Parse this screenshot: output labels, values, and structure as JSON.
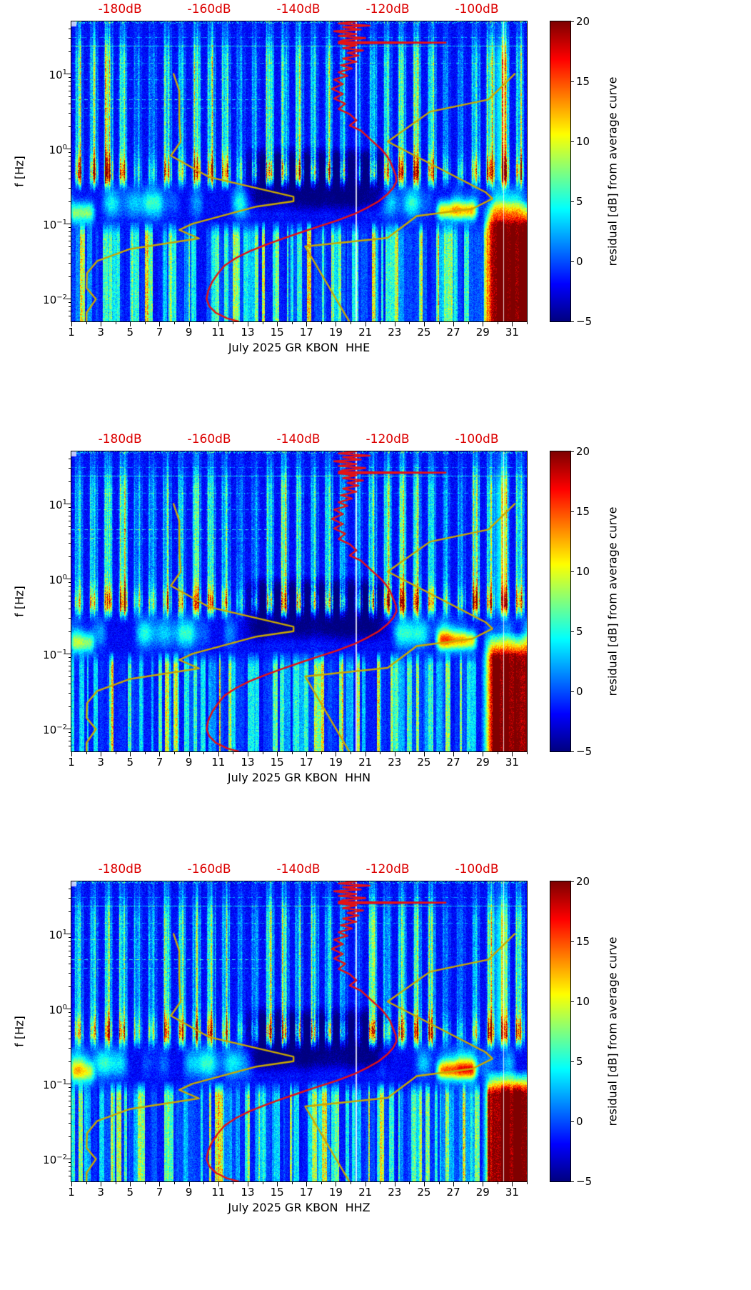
{
  "chart_data": {
    "type": "heatmap",
    "description": "Three stacked day-frequency residual spectrograms for July 2025, station GR KBON, channels HHE, HHN, HHZ, jet colormap, with red station average PSD curve and yellow Peterson noise-model curves referenced to the red dB axis on top",
    "panels": [
      {
        "channel": "HHE",
        "xlabel": "July 2025 GR KBON  HHE",
        "seed": 11,
        "storm_top_logf": -0.68
      },
      {
        "channel": "HHN",
        "xlabel": "July 2025 GR KBON  HHN",
        "seed": 29,
        "storm_top_logf": -0.7
      },
      {
        "channel": "HHZ",
        "xlabel": "July 2025 GR KBON  HHZ",
        "seed": 47,
        "storm_top_logf": -0.8
      }
    ],
    "common": {
      "ylabel": "f [Hz]",
      "x": {
        "lim": [
          1,
          32
        ],
        "major_ticks": [
          1,
          3,
          5,
          7,
          9,
          11,
          13,
          15,
          17,
          19,
          21,
          23,
          25,
          27,
          29,
          31
        ],
        "minor_ticks": [
          2,
          4,
          6,
          8,
          10,
          12,
          14,
          16,
          18,
          20,
          22,
          24,
          26,
          28,
          30,
          32
        ]
      },
      "y": {
        "lim_hz": [
          0.005,
          50
        ],
        "major_tick_exponents": [
          1,
          0,
          -1,
          -2
        ]
      },
      "top_axis": {
        "lim_db": [
          -190.9,
          -88.8
        ],
        "ticks_db": [
          -180,
          -160,
          -140,
          -120,
          -100
        ],
        "suffix": "dB",
        "color": "#dc0000"
      },
      "colorbar": {
        "label": "residual [dB] from average curve",
        "lim": [
          -5,
          20
        ],
        "ticks": [
          20,
          15,
          10,
          5,
          0,
          -5
        ],
        "colormap": "jet"
      },
      "features": {
        "quiet_period_days": [
          13,
          22.5
        ],
        "hot_microseism_days": [
          26,
          28.6
        ],
        "early_microseism_days": [
          1,
          2.6
        ],
        "storm_days": [
          28.8,
          32
        ],
        "data_gap_days": [
          20.35,
          30.42
        ],
        "interference_lines_hz": [
          31,
          23.5,
          14,
          8.5,
          4.6,
          3.5
        ]
      },
      "curves": {
        "red_color": "#e51313",
        "yellow_color": "#c9a800",
        "station_average_db": [
          [
            50,
            -127
          ],
          [
            47,
            -131
          ],
          [
            44,
            -124
          ],
          [
            42,
            -130
          ],
          [
            39,
            -126
          ],
          [
            37,
            -132
          ],
          [
            34,
            -127
          ],
          [
            32,
            -131
          ],
          [
            30,
            -125
          ],
          [
            28,
            -130
          ],
          [
            26.6,
            -131
          ],
          [
            26,
            -107
          ],
          [
            25.4,
            -131
          ],
          [
            24,
            -127
          ],
          [
            22,
            -130
          ],
          [
            20.5,
            -125.5
          ],
          [
            19,
            -129
          ],
          [
            17.5,
            -126.5
          ],
          [
            16,
            -130
          ],
          [
            14.5,
            -127
          ],
          [
            13,
            -130.5
          ],
          [
            11.8,
            -128
          ],
          [
            10.5,
            -131
          ],
          [
            9.4,
            -129
          ],
          [
            8.4,
            -132
          ],
          [
            7.3,
            -130
          ],
          [
            6.3,
            -132.5
          ],
          [
            5.4,
            -130
          ],
          [
            4.7,
            -132
          ],
          [
            4.0,
            -129.5
          ],
          [
            3.4,
            -131
          ],
          [
            2.9,
            -128.5
          ],
          [
            2.4,
            -127
          ],
          [
            2.05,
            -128.5
          ],
          [
            1.75,
            -126
          ],
          [
            1.45,
            -124.5
          ],
          [
            1.2,
            -123
          ],
          [
            1.0,
            -121.5
          ],
          [
            0.85,
            -120.5
          ],
          [
            0.7,
            -119.5
          ],
          [
            0.55,
            -118.8
          ],
          [
            0.45,
            -118.2
          ],
          [
            0.37,
            -118
          ],
          [
            0.3,
            -118.8
          ],
          [
            0.25,
            -120
          ],
          [
            0.2,
            -122
          ],
          [
            0.165,
            -124.5
          ],
          [
            0.135,
            -127.5
          ],
          [
            0.11,
            -131.5
          ],
          [
            0.09,
            -136
          ],
          [
            0.075,
            -140
          ],
          [
            0.062,
            -144
          ],
          [
            0.052,
            -147.5
          ],
          [
            0.043,
            -151
          ],
          [
            0.035,
            -154
          ],
          [
            0.028,
            -156.5
          ],
          [
            0.022,
            -158
          ],
          [
            0.017,
            -159.3
          ],
          [
            0.013,
            -160.2
          ],
          [
            0.01,
            -160.6
          ],
          [
            0.008,
            -160
          ],
          [
            0.0065,
            -158.5
          ],
          [
            0.0055,
            -156
          ],
          [
            0.005,
            -153.5
          ]
        ],
        "peterson_nlnm_db": [
          [
            10,
            -168
          ],
          [
            5.9,
            -166.7
          ],
          [
            2.5,
            -166.7
          ],
          [
            1.25,
            -166.4
          ],
          [
            0.81,
            -168.6
          ],
          [
            0.42,
            -160
          ],
          [
            0.23,
            -141.1
          ],
          [
            0.2,
            -141.1
          ],
          [
            0.17,
            -149.4
          ],
          [
            0.1,
            -163.8
          ],
          [
            0.083,
            -166.7
          ],
          [
            0.064,
            -162.3
          ],
          [
            0.046,
            -177.9
          ],
          [
            0.032,
            -185.1
          ],
          [
            0.022,
            -187.4
          ],
          [
            0.014,
            -187.5
          ],
          [
            0.0099,
            -185.4
          ],
          [
            0.0065,
            -187.5
          ],
          [
            0.005,
            -187.5
          ]
        ],
        "peterson_nhnm_db": [
          [
            10,
            -91.5
          ],
          [
            4.55,
            -97.4
          ],
          [
            3.13,
            -110.5
          ],
          [
            1.25,
            -120
          ],
          [
            0.263,
            -98
          ],
          [
            0.217,
            -96.5
          ],
          [
            0.159,
            -101
          ],
          [
            0.127,
            -113.5
          ],
          [
            0.065,
            -120
          ],
          [
            0.05,
            -138.5
          ],
          [
            0.005,
            -128.6
          ]
        ]
      }
    }
  }
}
